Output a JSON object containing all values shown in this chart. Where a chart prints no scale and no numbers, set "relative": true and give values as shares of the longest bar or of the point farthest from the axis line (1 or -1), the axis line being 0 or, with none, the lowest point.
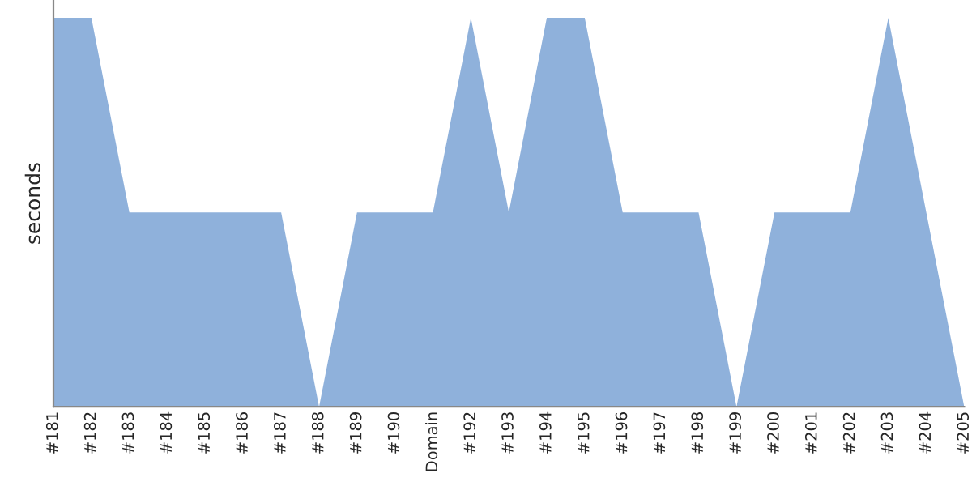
{
  "chart_data": {
    "type": "area",
    "relative": true,
    "ylabel": "seconds",
    "categories": [
      "#181",
      "#182",
      "#183",
      "#184",
      "#185",
      "#186",
      "#187",
      "#188",
      "#189",
      "#190",
      "Domain",
      "#192",
      "#193",
      "#194",
      "#195",
      "#196",
      "#197",
      "#198",
      "#199",
      "#200",
      "#201",
      "#202",
      "#203",
      "#204",
      "#205"
    ],
    "series": [
      {
        "color": "#8fb1db",
        "values": [
          1,
          1,
          0.5,
          0.5,
          0.5,
          0.5,
          0.5,
          0,
          0.5,
          0.5,
          0.5,
          1,
          0.5,
          1,
          1,
          0.5,
          0.5,
          0.5,
          0,
          0.5,
          0.5,
          0.5,
          1,
          0.5,
          0
        ]
      }
    ]
  }
}
